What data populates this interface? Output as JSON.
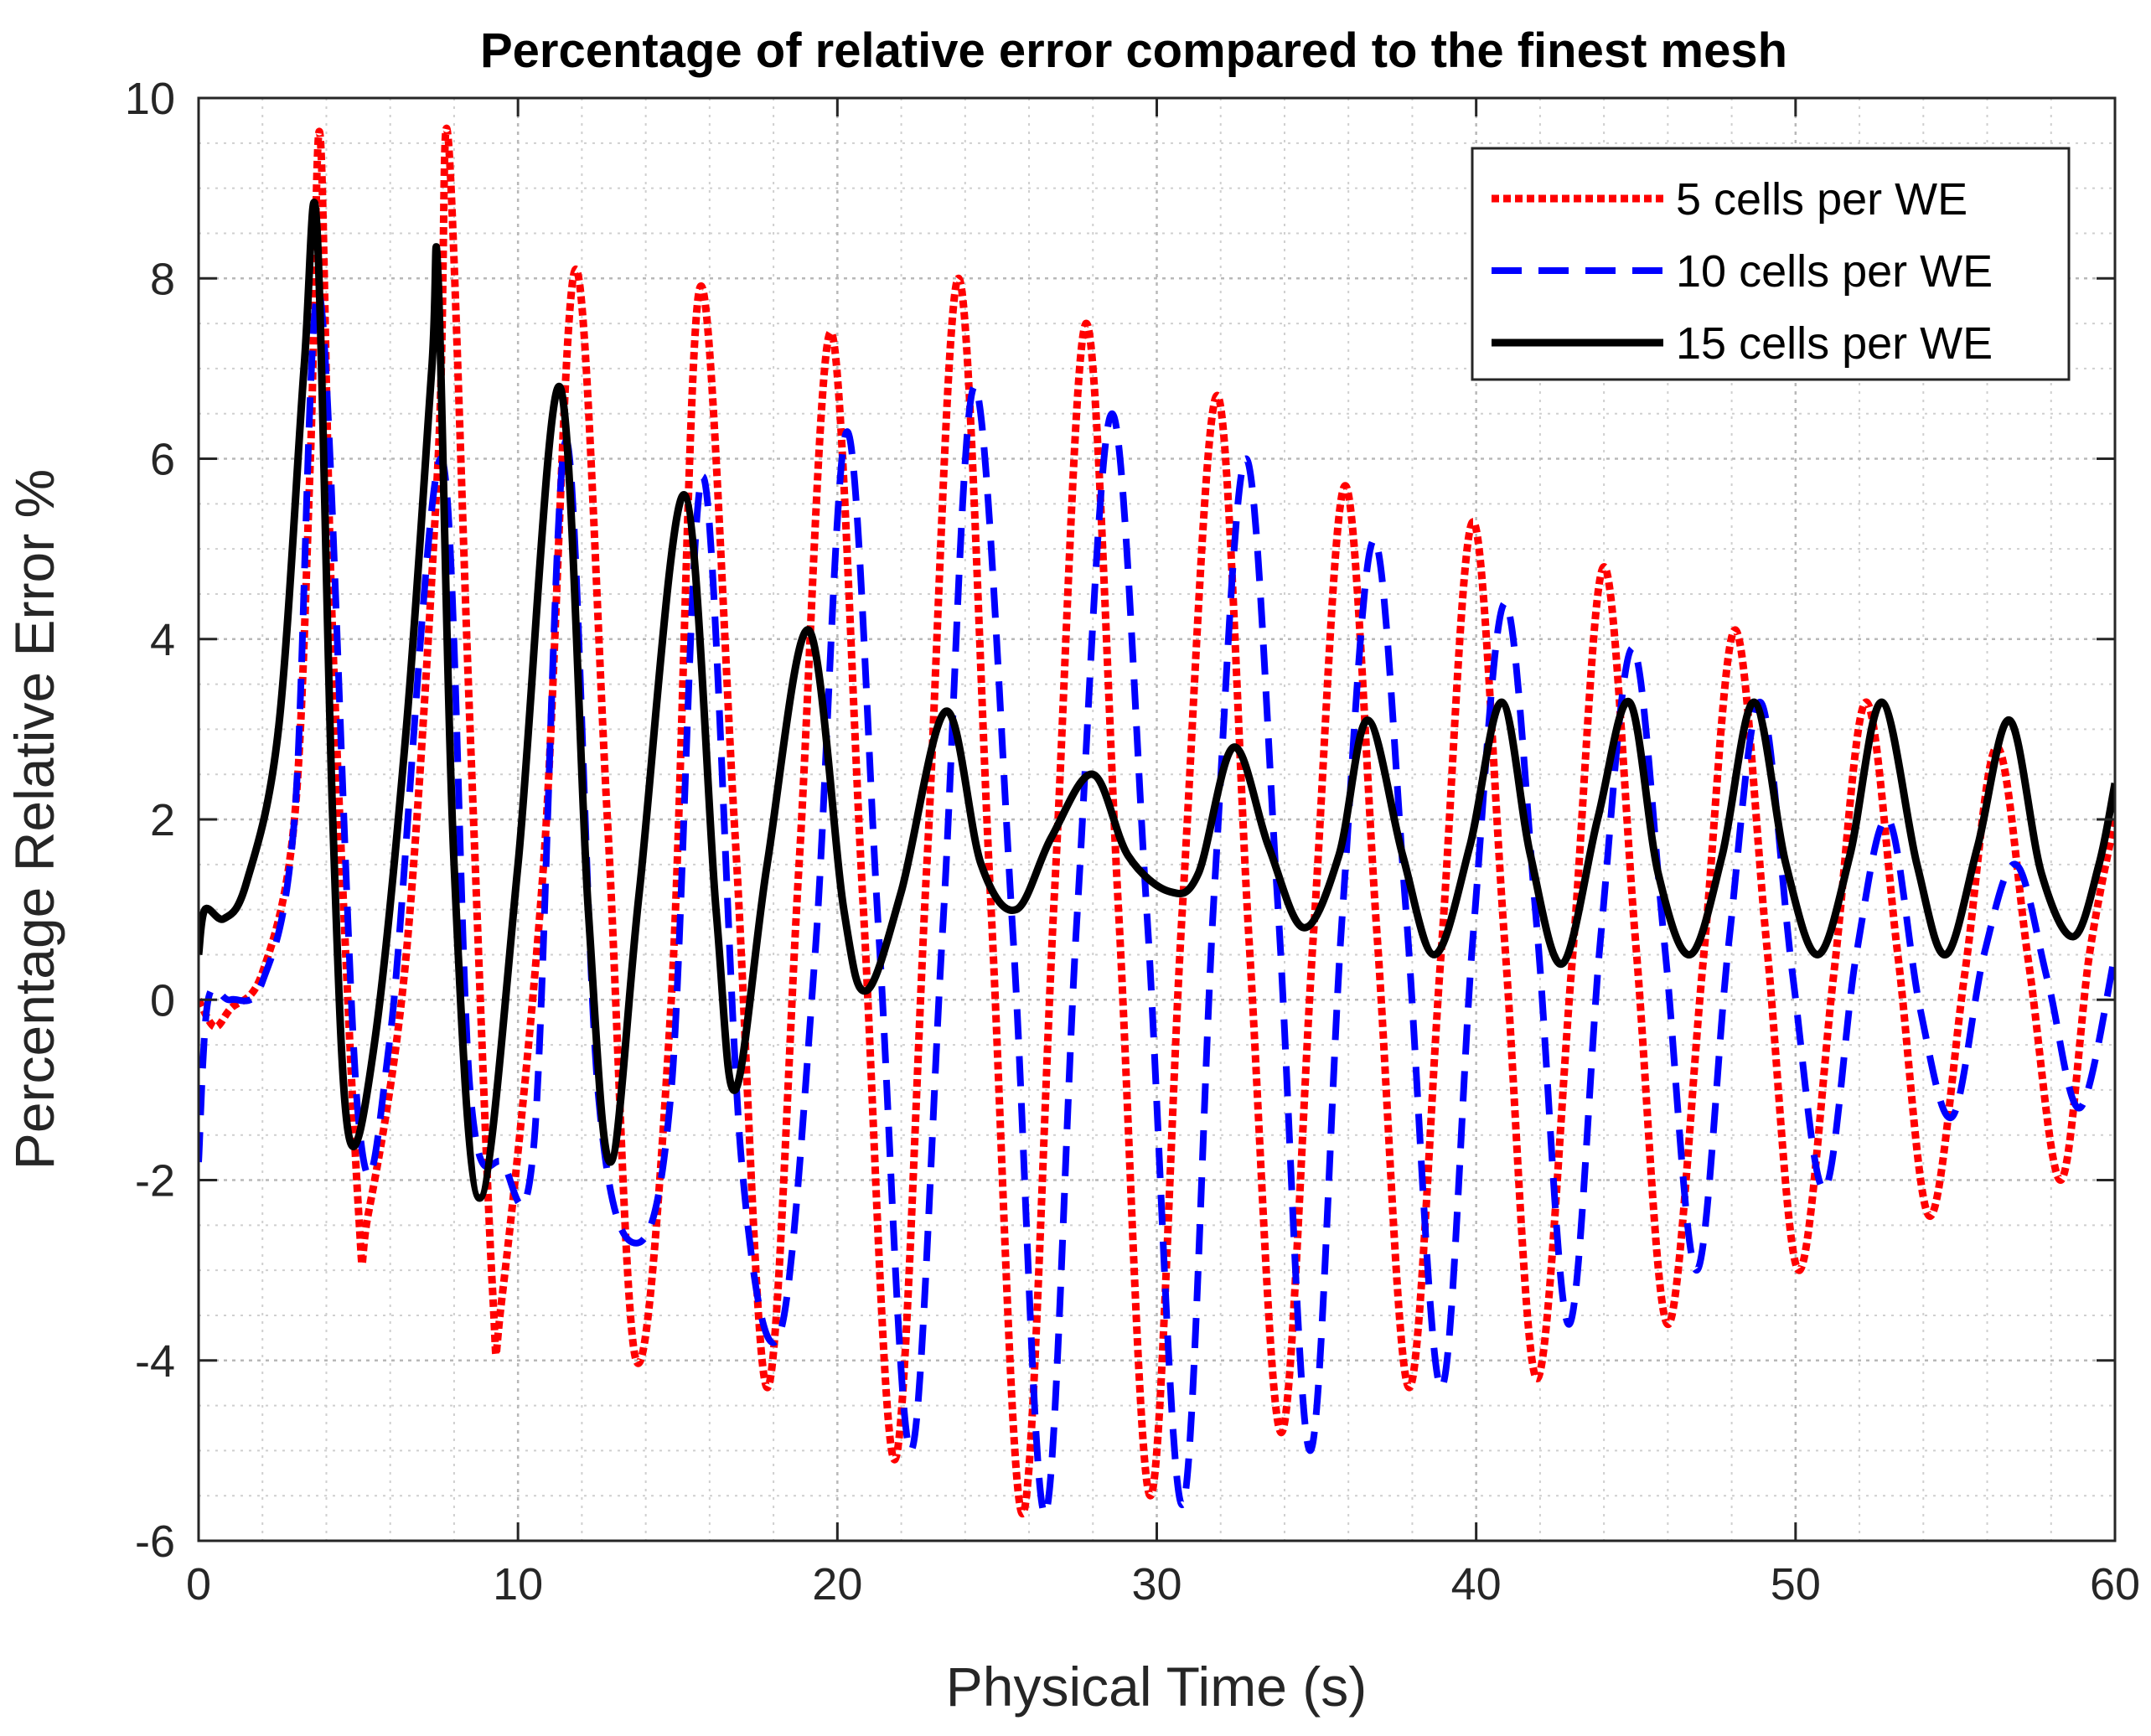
{
  "chart_data": {
    "type": "line",
    "title": "Percentage of relative error compared to the finest mesh",
    "xlabel": "Physical Time (s)",
    "ylabel": "Percentage Relative Error %",
    "xlim": [
      0,
      60
    ],
    "ylim": [
      -6,
      10
    ],
    "xticks": [
      0,
      10,
      20,
      30,
      40,
      50,
      60
    ],
    "yticks": [
      -6,
      -4,
      -2,
      0,
      2,
      4,
      6,
      8,
      10
    ],
    "xtick_labels": [
      "0",
      "10",
      "20",
      "30",
      "40",
      "50",
      "60"
    ],
    "ytick_labels": [
      "-6",
      "-4",
      "-2",
      "0",
      "2",
      "4",
      "6",
      "8",
      "10"
    ],
    "grid": "major and minor",
    "legend_location": "top-right",
    "series": [
      {
        "name": "5 cells per WE",
        "color": "#ff0000",
        "style": "dotted",
        "x": [
          0,
          0.5,
          1,
          2,
          3,
          3.5,
          3.8,
          4.2,
          5,
          5.3,
          6.5,
          7.5,
          7.8,
          8.5,
          9.2,
          9.5,
          10.8,
          11.8,
          12.8,
          13.7,
          14.8,
          15.7,
          16.8,
          17.8,
          18.8,
          19.8,
          20.8,
          21.8,
          22.8,
          23.8,
          24.8,
          25.8,
          26.8,
          27.8,
          28.8,
          29.8,
          30.8,
          31.9,
          32.9,
          33.9,
          34.9,
          35.9,
          36.9,
          37.9,
          38.9,
          39.9,
          40.9,
          41.9,
          43.0,
          44.0,
          45.0,
          46.0,
          47.1,
          48.1,
          49.1,
          50.1,
          51.2,
          52.2,
          53.2,
          54.2,
          55.3,
          56.3,
          57.3,
          58.3,
          59.2,
          60
        ],
        "values": [
          0,
          -0.3,
          -0.1,
          0.3,
          2,
          6,
          9.6,
          4,
          -2.3,
          -2.4,
          0.5,
          6,
          9.6,
          3,
          -3.2,
          -3.3,
          1.5,
          8.1,
          2,
          -4,
          0,
          7.9,
          1.8,
          -4.3,
          1.5,
          7.4,
          1.1,
          -5.1,
          1.5,
          8,
          1.1,
          -5.7,
          1.2,
          7.5,
          1,
          -5.5,
          1,
          6.7,
          0.6,
          -4.8,
          0.7,
          5.7,
          0.7,
          -4.3,
          0.5,
          5.3,
          0.6,
          -4.2,
          0.4,
          4.8,
          0.6,
          -3.6,
          0.4,
          4.1,
          0.6,
          -3,
          0.3,
          3.3,
          0.5,
          -2.4,
          0.3,
          2.8,
          0.4,
          -2,
          0.5,
          2
        ]
      },
      {
        "name": "10 cells per WE",
        "color": "#0000ff",
        "style": "dashed",
        "x": [
          0,
          0.3,
          1,
          2,
          3,
          3.8,
          5,
          6,
          7.6,
          8.5,
          9.5,
          10.5,
          11.5,
          12.5,
          13.7,
          14.8,
          15.8,
          17,
          18.2,
          19.3,
          20.3,
          21.3,
          22.3,
          23.3,
          24.3,
          25.5,
          26.5,
          27.5,
          28.6,
          29.7,
          30.8,
          31.8,
          32.8,
          33.8,
          34.8,
          35.8,
          36.8,
          37.8,
          38.9,
          39.9,
          40.9,
          41.9,
          42.9,
          43.9,
          44.9,
          45.9,
          46.9,
          47.9,
          48.9,
          49.9,
          50.9,
          51.9,
          52.9,
          53.9,
          54.9,
          55.9,
          56.9,
          57.9,
          58.9,
          60
        ],
        "values": [
          -1.8,
          0,
          0,
          0.2,
          2,
          7.8,
          -1.3,
          -0.4,
          6,
          -1,
          -1.8,
          -1.6,
          6.2,
          -1,
          -2.7,
          -1,
          5.8,
          -1.8,
          -3.7,
          0.5,
          6.3,
          0.7,
          -5,
          0.8,
          6.8,
          0.7,
          -5.7,
          0.9,
          6.5,
          0.9,
          -5.6,
          1.2,
          6,
          1,
          -5,
          0.9,
          5.1,
          1,
          -4.3,
          0.7,
          4.4,
          0.8,
          -3.6,
          0.7,
          3.9,
          0.6,
          -3,
          0.6,
          3.3,
          0.3,
          -2.1,
          0.5,
          2,
          -0.1,
          -1.3,
          0.5,
          1.5,
          0.2,
          -1.2,
          0.5
        ]
      },
      {
        "name": "15 cells per WE",
        "color": "#000000",
        "style": "solid",
        "x": [
          0,
          0.2,
          0.8,
          1.5,
          2.5,
          3.3,
          3.7,
          4.2,
          4.7,
          5.5,
          6.5,
          7.3,
          7.5,
          8,
          8.8,
          10,
          11.3,
          12.2,
          12.9,
          13.8,
          15.2,
          16.2,
          16.8,
          17.8,
          19.1,
          20.2,
          20.9,
          22,
          23.4,
          24.5,
          25.6,
          26.7,
          28,
          29.1,
          30.4,
          31.3,
          32.4,
          33.5,
          34.6,
          35.7,
          36.6,
          37.7,
          38.7,
          39.8,
          40.8,
          41.7,
          42.7,
          43.8,
          44.8,
          45.7,
          46.7,
          47.7,
          48.7,
          49.7,
          50.7,
          51.7,
          52.7,
          53.8,
          54.7,
          55.7,
          56.7,
          57.7,
          58.7,
          59.5,
          60
        ],
        "values": [
          0.5,
          1.0,
          0.9,
          1.3,
          3,
          7,
          8.6,
          2,
          -1.5,
          -0.5,
          3,
          7,
          8,
          1.5,
          -2.2,
          1.5,
          6.8,
          1,
          -1.8,
          1.2,
          5.6,
          1,
          -1,
          1.5,
          4.1,
          1,
          0.1,
          1.2,
          3.2,
          1.5,
          1.0,
          1.8,
          2.5,
          1.6,
          1.2,
          1.4,
          2.8,
          1.7,
          0.8,
          1.6,
          3.1,
          1.6,
          0.5,
          1.7,
          3.3,
          1.6,
          0.4,
          2,
          3.3,
          1.4,
          0.5,
          1.6,
          3.3,
          1.5,
          0.5,
          1.6,
          3.3,
          1.5,
          0.5,
          1.7,
          3.1,
          1.4,
          0.7,
          1.5,
          2.4
        ]
      }
    ]
  }
}
